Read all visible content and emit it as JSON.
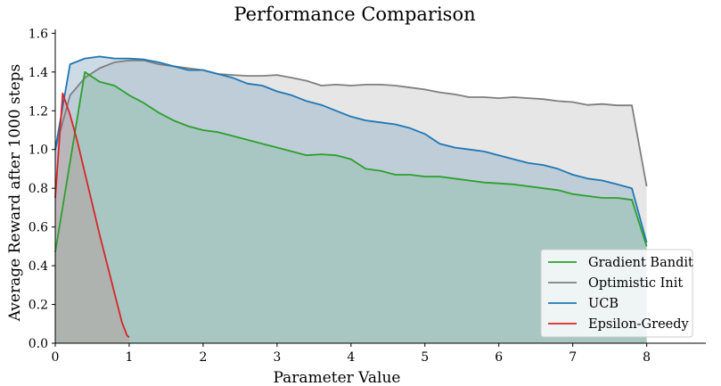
{
  "chart_data": {
    "type": "area",
    "title": "Performance Comparison",
    "xlabel": "Parameter Value",
    "ylabel": "Average Reward after 1000 steps",
    "xlim": [
      0,
      8.8
    ],
    "ylim": [
      0,
      1.62
    ],
    "xticks": [
      0,
      1,
      2,
      3,
      4,
      5,
      6,
      7,
      8
    ],
    "yticks": [
      0.0,
      0.2,
      0.4,
      0.6,
      0.8,
      1.0,
      1.2,
      1.4,
      1.6
    ],
    "grid": false,
    "legend_position": "lower-right",
    "series": [
      {
        "name": "Optimistic Init",
        "color": "#7f7f7f",
        "fill_color": "#c8c8c8",
        "x": [
          0,
          0.2,
          0.4,
          0.6,
          0.8,
          1.0,
          1.2,
          1.4,
          1.6,
          1.8,
          2.0,
          2.2,
          2.4,
          2.6,
          2.8,
          3.0,
          3.2,
          3.4,
          3.6,
          3.8,
          4.0,
          4.2,
          4.4,
          4.6,
          4.8,
          5.0,
          5.2,
          5.4,
          5.6,
          5.8,
          6.0,
          6.2,
          6.4,
          6.6,
          6.8,
          7.0,
          7.2,
          7.4,
          7.6,
          7.8,
          8.0
        ],
        "y": [
          1.0,
          1.28,
          1.37,
          1.42,
          1.45,
          1.46,
          1.46,
          1.44,
          1.43,
          1.42,
          1.41,
          1.39,
          1.385,
          1.38,
          1.38,
          1.385,
          1.37,
          1.355,
          1.33,
          1.335,
          1.33,
          1.335,
          1.335,
          1.33,
          1.32,
          1.31,
          1.295,
          1.285,
          1.27,
          1.27,
          1.265,
          1.27,
          1.265,
          1.26,
          1.25,
          1.245,
          1.23,
          1.235,
          1.228,
          1.228,
          0.81
        ]
      },
      {
        "name": "UCB",
        "color": "#1f77b4",
        "fill_color": "#8fb0c8",
        "x": [
          0,
          0.2,
          0.4,
          0.6,
          0.8,
          1.0,
          1.2,
          1.4,
          1.6,
          1.8,
          2.0,
          2.2,
          2.4,
          2.6,
          2.8,
          3.0,
          3.2,
          3.4,
          3.6,
          3.8,
          4.0,
          4.2,
          4.4,
          4.6,
          4.8,
          5.0,
          5.2,
          5.4,
          5.6,
          5.8,
          6.0,
          6.2,
          6.4,
          6.6,
          6.8,
          7.0,
          7.2,
          7.4,
          7.6,
          7.8,
          8.0
        ],
        "y": [
          1.0,
          1.44,
          1.47,
          1.48,
          1.47,
          1.47,
          1.465,
          1.45,
          1.43,
          1.41,
          1.41,
          1.39,
          1.37,
          1.34,
          1.33,
          1.3,
          1.28,
          1.25,
          1.23,
          1.2,
          1.17,
          1.15,
          1.14,
          1.13,
          1.11,
          1.08,
          1.03,
          1.01,
          1.0,
          0.99,
          0.97,
          0.95,
          0.93,
          0.92,
          0.9,
          0.87,
          0.85,
          0.84,
          0.82,
          0.8,
          0.52
        ]
      },
      {
        "name": "Gradient Bandit",
        "color": "#2ca02c",
        "fill_color": "#8fbfa8",
        "x": [
          0,
          0.4,
          0.6,
          0.8,
          1.0,
          1.2,
          1.4,
          1.6,
          1.8,
          2.0,
          2.2,
          2.4,
          2.6,
          2.8,
          3.0,
          3.2,
          3.4,
          3.6,
          3.8,
          4.0,
          4.2,
          4.4,
          4.6,
          4.8,
          5.0,
          5.2,
          5.4,
          5.6,
          5.8,
          6.0,
          6.2,
          6.4,
          6.6,
          6.8,
          7.0,
          7.2,
          7.4,
          7.6,
          7.8,
          8.0
        ],
        "y": [
          0.47,
          1.4,
          1.35,
          1.33,
          1.28,
          1.24,
          1.19,
          1.15,
          1.12,
          1.1,
          1.09,
          1.07,
          1.05,
          1.03,
          1.01,
          0.99,
          0.97,
          0.975,
          0.97,
          0.95,
          0.9,
          0.89,
          0.87,
          0.87,
          0.86,
          0.86,
          0.85,
          0.84,
          0.83,
          0.825,
          0.82,
          0.81,
          0.8,
          0.79,
          0.77,
          0.76,
          0.75,
          0.75,
          0.74,
          0.5
        ]
      },
      {
        "name": "Epsilon-Greedy",
        "color": "#d62728",
        "fill_color": "#b89c9c",
        "x": [
          0,
          0.1,
          0.2,
          0.3,
          0.4,
          0.5,
          0.6,
          0.7,
          0.8,
          0.9,
          0.97,
          1.0
        ],
        "y": [
          0.75,
          1.29,
          1.18,
          1.04,
          0.88,
          0.72,
          0.56,
          0.41,
          0.26,
          0.11,
          0.04,
          0.03
        ]
      }
    ]
  }
}
